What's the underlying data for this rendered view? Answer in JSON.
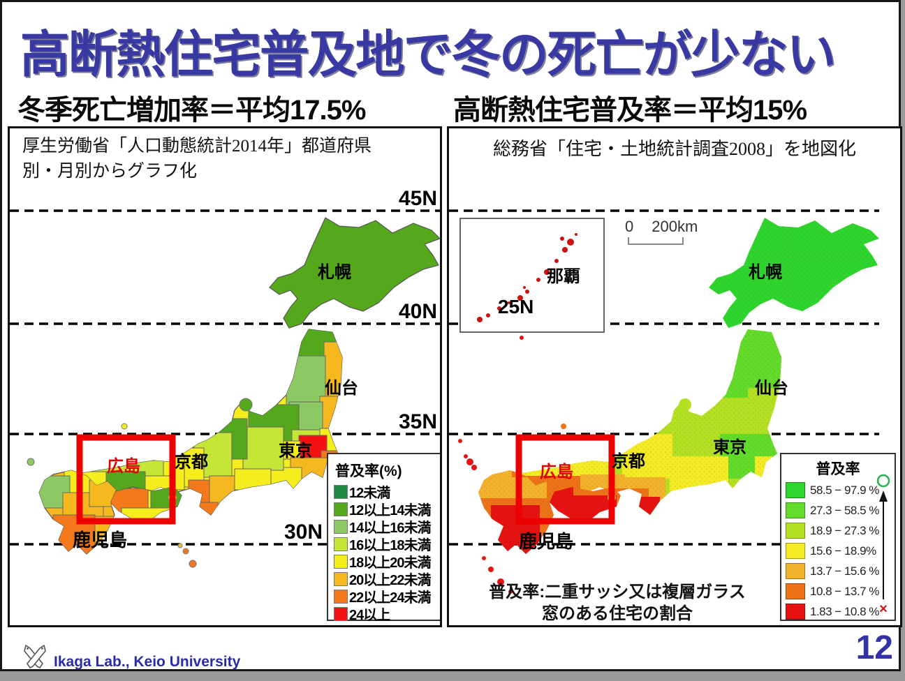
{
  "slide": {
    "title": "高断熱住宅普及地で冬の死亡が少ない",
    "left_heading": "冬季死亡増加率＝平均17.5%",
    "right_heading": "高断熱住宅普及率＝平均15%",
    "footer_text": "Ikaga Lab., Keio University",
    "page_number": "12",
    "title_color": "#3939A3",
    "footer_color": "#2B2BA8",
    "highlight_color": "#EE0000"
  },
  "left_panel": {
    "source_note": "厚生労働省「人口動態統計2014年」都道府県\n別・月別からグラフ化",
    "latitude_labels": {
      "n45": "45N",
      "n40": "40N",
      "n35": "35N",
      "n30": "30N"
    },
    "cities": {
      "sapporo": "札幌",
      "sendai": "仙台",
      "tokyo": "東京",
      "kyoto": "京都",
      "hiroshima": "広島",
      "kagoshima": "鹿児島"
    },
    "legend": {
      "title": "普及率(%)",
      "entries": [
        {
          "label": "12未満",
          "color": "#1F8A44"
        },
        {
          "label": "12以上14未満",
          "color": "#55A81C"
        },
        {
          "label": "14以上16未満",
          "color": "#8CC963"
        },
        {
          "label": "16以上18未満",
          "color": "#C6E637"
        },
        {
          "label": "18以上20未満",
          "color": "#F6EE1C"
        },
        {
          "label": "20以上22未満",
          "color": "#F5B91F"
        },
        {
          "label": "22以上24未満",
          "color": "#F4791B"
        },
        {
          "label": "24以上",
          "color": "#F31111"
        }
      ]
    }
  },
  "right_panel": {
    "source_note": "総務省「住宅・土地統計調査2008」を地図化",
    "inset": {
      "city": "那覇",
      "latitude_label": "25N"
    },
    "scale_bar": {
      "start": "0",
      "end": "200km"
    },
    "cities": {
      "sapporo": "札幌",
      "sendai": "仙台",
      "tokyo": "東京",
      "kyoto": "京都",
      "hiroshima": "広島",
      "kagoshima": "鹿児島"
    },
    "caption": "普及率:二重サッシ又は複層ガラス\n窓のある住宅の割合",
    "legend": {
      "title": "普及率",
      "best_marker": "○",
      "worst_marker": "×",
      "entries": [
        {
          "label": "58.5 − 97.9 %",
          "color": "#2FD52F"
        },
        {
          "label": "27.3 − 58.5 %",
          "color": "#63DB2A"
        },
        {
          "label": "18.9 − 27.3 %",
          "color": "#B4E023"
        },
        {
          "label": "15.6 − 18.9%",
          "color": "#F4EA25"
        },
        {
          "label": "13.7 − 15.6 %",
          "color": "#F2B22B"
        },
        {
          "label": "10.8 − 13.7 %",
          "color": "#ED7218"
        },
        {
          "label": "1.83 − 10.8 %",
          "color": "#E61212"
        }
      ]
    }
  }
}
